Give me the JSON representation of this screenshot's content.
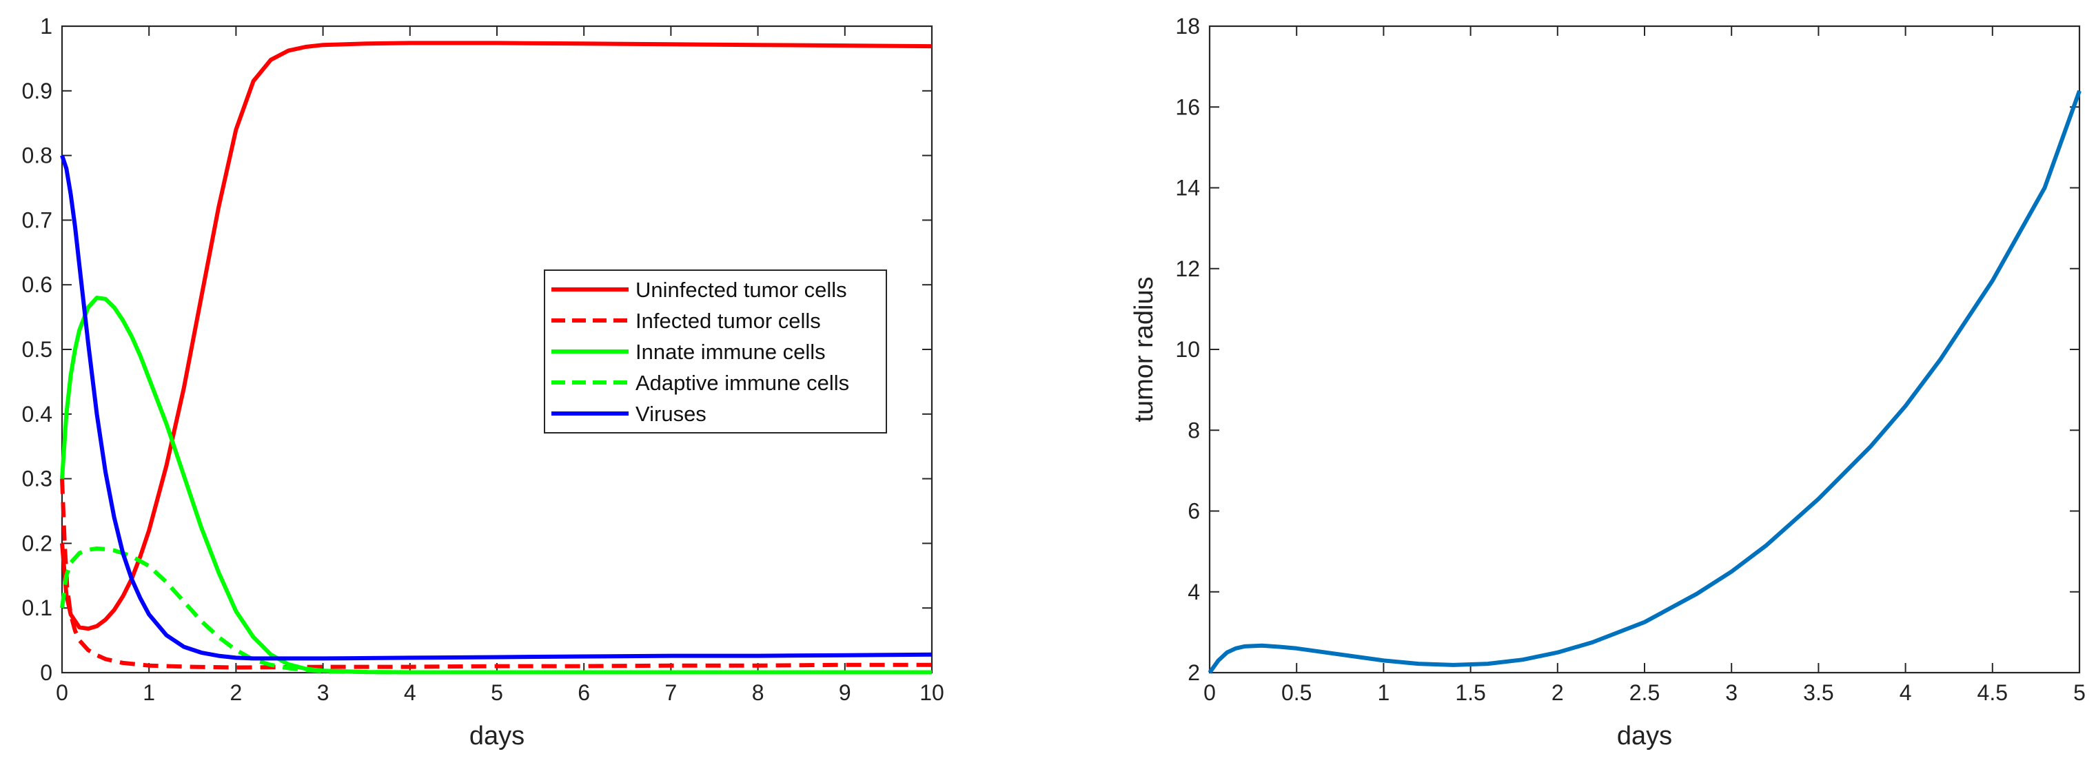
{
  "chart_data": [
    {
      "type": "line",
      "title": "",
      "xlabel": "days",
      "ylabel": "",
      "xlim": [
        0,
        10
      ],
      "ylim": [
        0,
        1
      ],
      "xticks": [
        0,
        1,
        2,
        3,
        4,
        5,
        6,
        7,
        8,
        9,
        10
      ],
      "yticks": [
        0,
        0.1,
        0.2,
        0.3,
        0.4,
        0.5,
        0.6,
        0.7,
        0.8,
        0.9,
        1
      ],
      "xtick_labels": [
        "0",
        "1",
        "2",
        "3",
        "4",
        "5",
        "6",
        "7",
        "8",
        "9",
        "10"
      ],
      "ytick_labels": [
        "0",
        "0.1",
        "0.2",
        "0.3",
        "0.4",
        "0.5",
        "0.6",
        "0.7",
        "0.8",
        "0.9",
        "1"
      ],
      "grid": false,
      "legend_position": "center-right",
      "series": [
        {
          "name": "Uninfected tumor cells",
          "color": "#ff0000",
          "style": "solid",
          "x": [
            0,
            0.05,
            0.1,
            0.2,
            0.3,
            0.4,
            0.5,
            0.6,
            0.7,
            0.8,
            0.9,
            1.0,
            1.2,
            1.4,
            1.6,
            1.8,
            2.0,
            2.2,
            2.4,
            2.6,
            2.8,
            3.0,
            3.5,
            4,
            5,
            6,
            7,
            8,
            9,
            10
          ],
          "y": [
            0.2,
            0.12,
            0.09,
            0.07,
            0.068,
            0.072,
            0.082,
            0.097,
            0.118,
            0.145,
            0.18,
            0.22,
            0.32,
            0.44,
            0.58,
            0.72,
            0.84,
            0.915,
            0.948,
            0.962,
            0.968,
            0.971,
            0.973,
            0.974,
            0.974,
            0.973,
            0.972,
            0.971,
            0.97,
            0.969
          ]
        },
        {
          "name": "Infected tumor cells",
          "color": "#ff0000",
          "style": "dashed",
          "x": [
            0,
            0.03,
            0.06,
            0.1,
            0.15,
            0.2,
            0.3,
            0.4,
            0.5,
            0.7,
            1.0,
            1.5,
            2,
            3,
            4,
            5,
            6,
            7,
            8,
            9,
            10
          ],
          "y": [
            0.3,
            0.2,
            0.13,
            0.09,
            0.065,
            0.05,
            0.035,
            0.027,
            0.021,
            0.015,
            0.011,
            0.009,
            0.008,
            0.009,
            0.009,
            0.01,
            0.01,
            0.011,
            0.011,
            0.012,
            0.012
          ]
        },
        {
          "name": "Innate immune cells",
          "color": "#00ff00",
          "style": "solid",
          "x": [
            0,
            0.05,
            0.1,
            0.15,
            0.2,
            0.3,
            0.4,
            0.5,
            0.6,
            0.7,
            0.8,
            0.9,
            1.0,
            1.1,
            1.2,
            1.3,
            1.4,
            1.6,
            1.8,
            2.0,
            2.2,
            2.4,
            2.6,
            2.8,
            3.0,
            3.5,
            4,
            5,
            6,
            7,
            8,
            9,
            10
          ],
          "y": [
            0.3,
            0.4,
            0.46,
            0.5,
            0.53,
            0.565,
            0.58,
            0.578,
            0.565,
            0.545,
            0.52,
            0.49,
            0.455,
            0.42,
            0.385,
            0.345,
            0.305,
            0.225,
            0.155,
            0.095,
            0.055,
            0.028,
            0.013,
            0.006,
            0.003,
            0.001,
            0.0005,
            0.0005,
            0.0005,
            0.0005,
            0.0005,
            0.0005,
            0.0005
          ]
        },
        {
          "name": "Adaptive immune cells",
          "color": "#00ff00",
          "style": "dashed",
          "x": [
            0,
            0.05,
            0.1,
            0.2,
            0.3,
            0.4,
            0.5,
            0.6,
            0.7,
            0.8,
            1.0,
            1.2,
            1.4,
            1.6,
            1.8,
            2.0,
            2.2,
            2.4,
            2.6,
            2.8,
            3.0,
            3.5,
            4,
            5,
            6,
            7,
            8,
            9,
            10
          ],
          "y": [
            0.1,
            0.15,
            0.17,
            0.185,
            0.19,
            0.192,
            0.191,
            0.189,
            0.185,
            0.18,
            0.165,
            0.14,
            0.11,
            0.08,
            0.055,
            0.035,
            0.02,
            0.012,
            0.007,
            0.004,
            0.002,
            0.001,
            0.0005,
            0.0005,
            0.0005,
            0.0005,
            0.0005,
            0.0005,
            0.0005
          ]
        },
        {
          "name": "Viruses",
          "color": "#0000ff",
          "style": "solid",
          "x": [
            0,
            0.05,
            0.1,
            0.15,
            0.2,
            0.3,
            0.4,
            0.5,
            0.6,
            0.7,
            0.8,
            0.9,
            1.0,
            1.2,
            1.4,
            1.6,
            1.8,
            2.0,
            2.2,
            2.5,
            3,
            4,
            5,
            6,
            7,
            8,
            9,
            10
          ],
          "y": [
            0.8,
            0.78,
            0.74,
            0.69,
            0.63,
            0.51,
            0.4,
            0.31,
            0.24,
            0.185,
            0.145,
            0.115,
            0.09,
            0.058,
            0.04,
            0.031,
            0.026,
            0.023,
            0.022,
            0.022,
            0.022,
            0.023,
            0.024,
            0.025,
            0.026,
            0.026,
            0.027,
            0.028
          ]
        }
      ]
    },
    {
      "type": "line",
      "title": "",
      "xlabel": "days",
      "ylabel": "tumor radius",
      "xlim": [
        0,
        5
      ],
      "ylim": [
        2,
        18
      ],
      "xticks": [
        0,
        0.5,
        1,
        1.5,
        2,
        2.5,
        3,
        3.5,
        4,
        4.5,
        5
      ],
      "yticks": [
        2,
        4,
        6,
        8,
        10,
        12,
        14,
        16,
        18
      ],
      "xtick_labels": [
        "0",
        "0.5",
        "1",
        "1.5",
        "2",
        "2.5",
        "3",
        "3.5",
        "4",
        "4.5",
        "5"
      ],
      "ytick_labels": [
        "2",
        "4",
        "6",
        "8",
        "10",
        "12",
        "14",
        "16",
        "18"
      ],
      "grid": false,
      "series": [
        {
          "name": "tumor radius",
          "color": "#0072bd",
          "style": "solid",
          "x": [
            0,
            0.05,
            0.1,
            0.15,
            0.2,
            0.3,
            0.4,
            0.5,
            0.6,
            0.8,
            1.0,
            1.2,
            1.4,
            1.6,
            1.8,
            2.0,
            2.2,
            2.5,
            2.8,
            3.0,
            3.2,
            3.5,
            3.8,
            4.0,
            4.2,
            4.5,
            4.8,
            5.0
          ],
          "y": [
            2.0,
            2.3,
            2.5,
            2.6,
            2.65,
            2.67,
            2.64,
            2.6,
            2.54,
            2.42,
            2.3,
            2.22,
            2.19,
            2.22,
            2.32,
            2.5,
            2.75,
            3.25,
            3.95,
            4.5,
            5.15,
            6.3,
            7.6,
            8.6,
            9.75,
            11.7,
            14.0,
            16.4
          ]
        }
      ]
    }
  ],
  "legend": {
    "items": [
      {
        "label": "Uninfected tumor cells",
        "color": "#ff0000",
        "style": "solid"
      },
      {
        "label": "Infected tumor cells",
        "color": "#ff0000",
        "style": "dashed"
      },
      {
        "label": "Innate immune cells",
        "color": "#00ff00",
        "style": "solid"
      },
      {
        "label": "Adaptive immune cells",
        "color": "#00ff00",
        "style": "dashed"
      },
      {
        "label": "Viruses",
        "color": "#0000ff",
        "style": "solid"
      }
    ]
  }
}
